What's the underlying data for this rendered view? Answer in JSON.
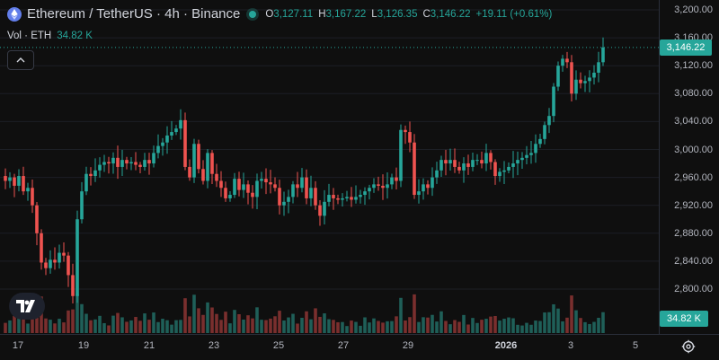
{
  "header": {
    "title": "Ethereum / TetherUS · 4h · Binance",
    "ohlc": [
      {
        "key": "O",
        "value": "3,127.11"
      },
      {
        "key": "H",
        "value": "3,167.22"
      },
      {
        "key": "L",
        "value": "3,126.35"
      },
      {
        "key": "C",
        "value": "3,146.22"
      }
    ],
    "change": "+19.11 (+0.61%)"
  },
  "volume_legend": {
    "label": "Vol · ETH",
    "value": "34.82 K"
  },
  "price_axis": {
    "labels": [
      "3,200.00",
      "3,160.00",
      "3,120.00",
      "3,080.00",
      "3,040.00",
      "3,000.00",
      "2,960.00",
      "2,920.00",
      "2,880.00",
      "2,840.00",
      "2,800.00"
    ],
    "current_price": "3,146.22",
    "current_volume": "34.82 K"
  },
  "time_axis": {
    "labels": [
      {
        "text": "17",
        "bold": false
      },
      {
        "text": "19",
        "bold": false
      },
      {
        "text": "21",
        "bold": false
      },
      {
        "text": "23",
        "bold": false
      },
      {
        "text": "25",
        "bold": false
      },
      {
        "text": "27",
        "bold": false
      },
      {
        "text": "29",
        "bold": false
      },
      {
        "text": "2026",
        "bold": true
      },
      {
        "text": "3",
        "bold": false
      },
      {
        "text": "5",
        "bold": false
      }
    ]
  },
  "colors": {
    "up": "#26a69a",
    "down": "#ef5350",
    "vol_up": "#1f5f58",
    "vol_down": "#7a2f2e",
    "grid": "#1c1f26"
  },
  "chart_data": {
    "type": "candlestick",
    "symbol": "ETHUSDT",
    "interval": "4h",
    "ylim": [
      2770,
      3215
    ],
    "price_ticks": [
      3200,
      3160,
      3120,
      3080,
      3040,
      3000,
      2960,
      2920,
      2880,
      2840,
      2800
    ],
    "last_close": 3146.22,
    "closes": [
      2955,
      2960,
      2948,
      2962,
      2940,
      2945,
      2920,
      2880,
      2838,
      2830,
      2842,
      2838,
      2852,
      2848,
      2820,
      2790,
      2900,
      2940,
      2965,
      2962,
      2970,
      2978,
      2982,
      2980,
      2988,
      2975,
      2985,
      2980,
      2982,
      2978,
      2975,
      2985,
      2980,
      2995,
      3005,
      3010,
      3020,
      3025,
      3030,
      3042,
      2975,
      2960,
      3008,
      2972,
      2955,
      2995,
      2965,
      2955,
      2945,
      2930,
      2935,
      2958,
      2942,
      2950,
      2938,
      2932,
      2955,
      2958,
      2953,
      2950,
      2945,
      2920,
      2925,
      2932,
      2950,
      2945,
      2960,
      2930,
      2945,
      2920,
      2905,
      2925,
      2935,
      2930,
      2928,
      2930,
      2932,
      2928,
      2932,
      2935,
      2940,
      2945,
      2950,
      2948,
      2945,
      2950,
      2960,
      2955,
      3028,
      3025,
      3010,
      2935,
      2940,
      2950,
      2945,
      2960,
      2970,
      2985,
      2980,
      2985,
      2975,
      2970,
      2980,
      2975,
      2985,
      2985,
      2980,
      2995,
      2982,
      2962,
      2968,
      2970,
      2975,
      2980,
      2985,
      2988,
      2992,
      2995,
      3008,
      3015,
      3035,
      3048,
      3090,
      3120,
      3130,
      3125,
      3080,
      3100,
      3095,
      3098,
      3103,
      3110,
      3125,
      3146.22
    ],
    "volume_profile_relative": "higher bars on Dec 18-19 and Dec 29-30 and Jan 2-3"
  }
}
